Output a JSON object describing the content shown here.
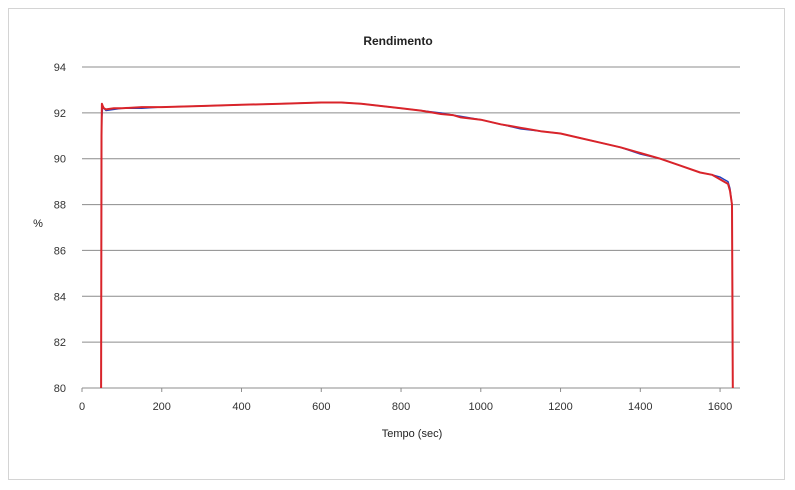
{
  "chart_data": {
    "type": "line",
    "title": "Rendimento",
    "xlabel": "Tempo (sec)",
    "ylabel": "%",
    "xlim": [
      0,
      1650
    ],
    "ylim": [
      80,
      94
    ],
    "xticks": [
      0,
      200,
      400,
      600,
      800,
      1000,
      1200,
      1400,
      1600
    ],
    "yticks": [
      80,
      82,
      84,
      86,
      88,
      90,
      92,
      94
    ],
    "grid": "horizontal",
    "legend": "none",
    "series": [
      {
        "color": "#1f3fbf",
        "x": [
          48,
          49,
          50,
          52,
          55,
          60,
          80,
          100,
          150,
          200,
          300,
          400,
          500,
          600,
          650,
          700,
          750,
          800,
          850,
          900,
          930,
          950,
          1000,
          1050,
          1100,
          1150,
          1200,
          1250,
          1300,
          1350,
          1400,
          1450,
          1500,
          1550,
          1580,
          1600,
          1610,
          1620,
          1625,
          1630,
          1632
        ],
        "y": [
          80,
          90.0,
          91.8,
          92.3,
          92.2,
          92.1,
          92.15,
          92.2,
          92.2,
          92.25,
          92.3,
          92.35,
          92.4,
          92.45,
          92.45,
          92.4,
          92.3,
          92.2,
          92.1,
          92.0,
          91.9,
          91.85,
          91.7,
          91.5,
          91.3,
          91.2,
          91.1,
          90.9,
          90.7,
          90.5,
          90.2,
          90.0,
          89.7,
          89.4,
          89.3,
          89.2,
          89.1,
          89.0,
          88.7,
          88.0,
          80
        ]
      },
      {
        "color": "#d9242a",
        "x": [
          48,
          49,
          50,
          52,
          55,
          60,
          80,
          100,
          150,
          200,
          300,
          400,
          500,
          600,
          650,
          700,
          750,
          800,
          850,
          900,
          930,
          950,
          1000,
          1050,
          1100,
          1150,
          1200,
          1250,
          1300,
          1350,
          1400,
          1450,
          1500,
          1550,
          1580,
          1600,
          1610,
          1620,
          1625,
          1630,
          1632
        ],
        "y": [
          80,
          91.0,
          92.4,
          92.3,
          92.2,
          92.15,
          92.2,
          92.2,
          92.25,
          92.25,
          92.3,
          92.35,
          92.4,
          92.45,
          92.45,
          92.4,
          92.3,
          92.2,
          92.1,
          91.95,
          91.9,
          91.8,
          91.7,
          91.5,
          91.35,
          91.2,
          91.1,
          90.9,
          90.7,
          90.5,
          90.25,
          90.0,
          89.7,
          89.4,
          89.3,
          89.1,
          89.0,
          88.9,
          88.6,
          88.0,
          80
        ]
      }
    ]
  }
}
